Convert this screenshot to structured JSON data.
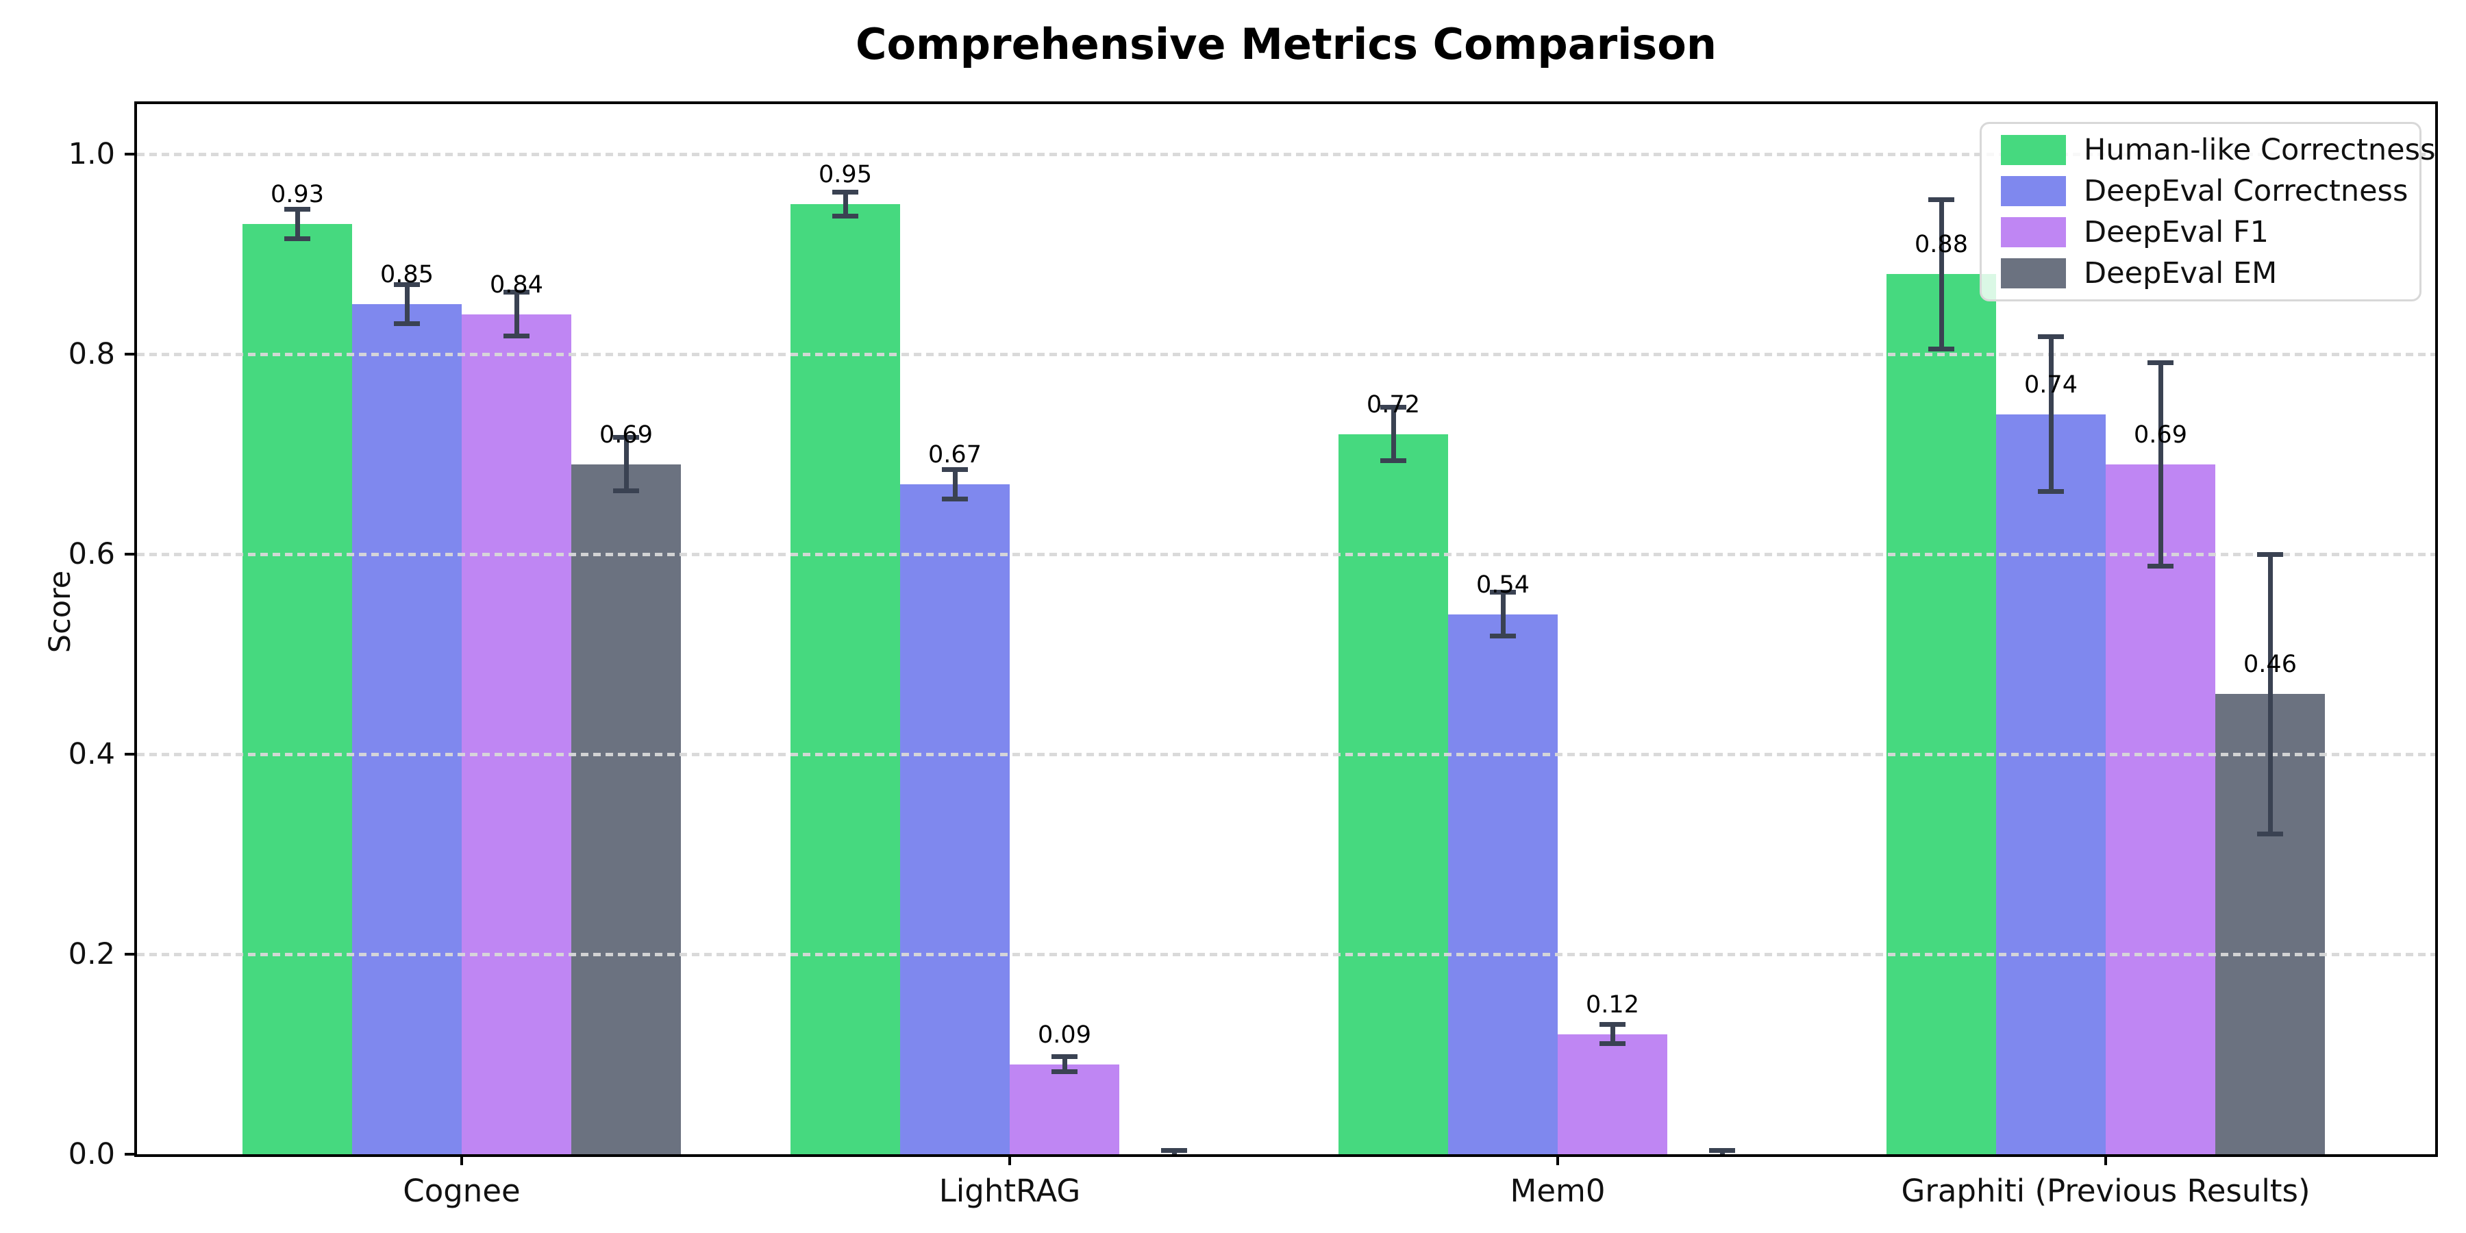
{
  "title": "Comprehensive Metrics Comparison",
  "ylabel": "Score",
  "chart_data": {
    "type": "bar",
    "categories": [
      "Cognee",
      "LightRAG",
      "Mem0",
      "Graphiti (Previous Results)"
    ],
    "series": [
      {
        "name": "Human-like Correctness",
        "color": "#46d97f",
        "values": [
          0.93,
          0.95,
          0.72,
          0.88
        ],
        "errors": [
          0.015,
          0.012,
          0.027,
          0.075
        ],
        "bar_labels": [
          "0.93",
          "0.95",
          "0.72",
          "0.88"
        ]
      },
      {
        "name": "DeepEval Correctness",
        "color": "#7f88ee",
        "values": [
          0.85,
          0.67,
          0.54,
          0.74
        ],
        "errors": [
          0.02,
          0.015,
          0.022,
          0.078
        ],
        "bar_labels": [
          "0.85",
          "0.67",
          "0.54",
          "0.74"
        ]
      },
      {
        "name": "DeepEval F1",
        "color": "#bf86f3",
        "values": [
          0.84,
          0.09,
          0.12,
          0.69
        ],
        "errors": [
          0.022,
          0.008,
          0.01,
          0.102
        ],
        "bar_labels": [
          "0.84",
          "0.09",
          "0.12",
          "0.69"
        ]
      },
      {
        "name": "DeepEval EM",
        "color": "#6b7280",
        "values": [
          0.69,
          0.0,
          0.0,
          0.46
        ],
        "errors": [
          0.027,
          0.004,
          0.004,
          0.14
        ],
        "bar_labels": [
          "0.69",
          "",
          "",
          "0.46"
        ]
      }
    ],
    "title": "Comprehensive Metrics Comparison",
    "xlabel": "",
    "ylabel": "Score",
    "ylim": [
      0,
      1.05
    ],
    "yticks": [
      0.0,
      0.2,
      0.4,
      0.6,
      0.8,
      1.0
    ],
    "ytick_labels": [
      "0.0",
      "0.2",
      "0.4",
      "0.6",
      "0.8",
      "1.0"
    ],
    "grid": "horizontal-dashed-above-bars",
    "gridline_color": "#d8d8d8",
    "error_bar_color": "#3a4252",
    "legend_position": "upper right",
    "background_color": "#ffffff"
  }
}
